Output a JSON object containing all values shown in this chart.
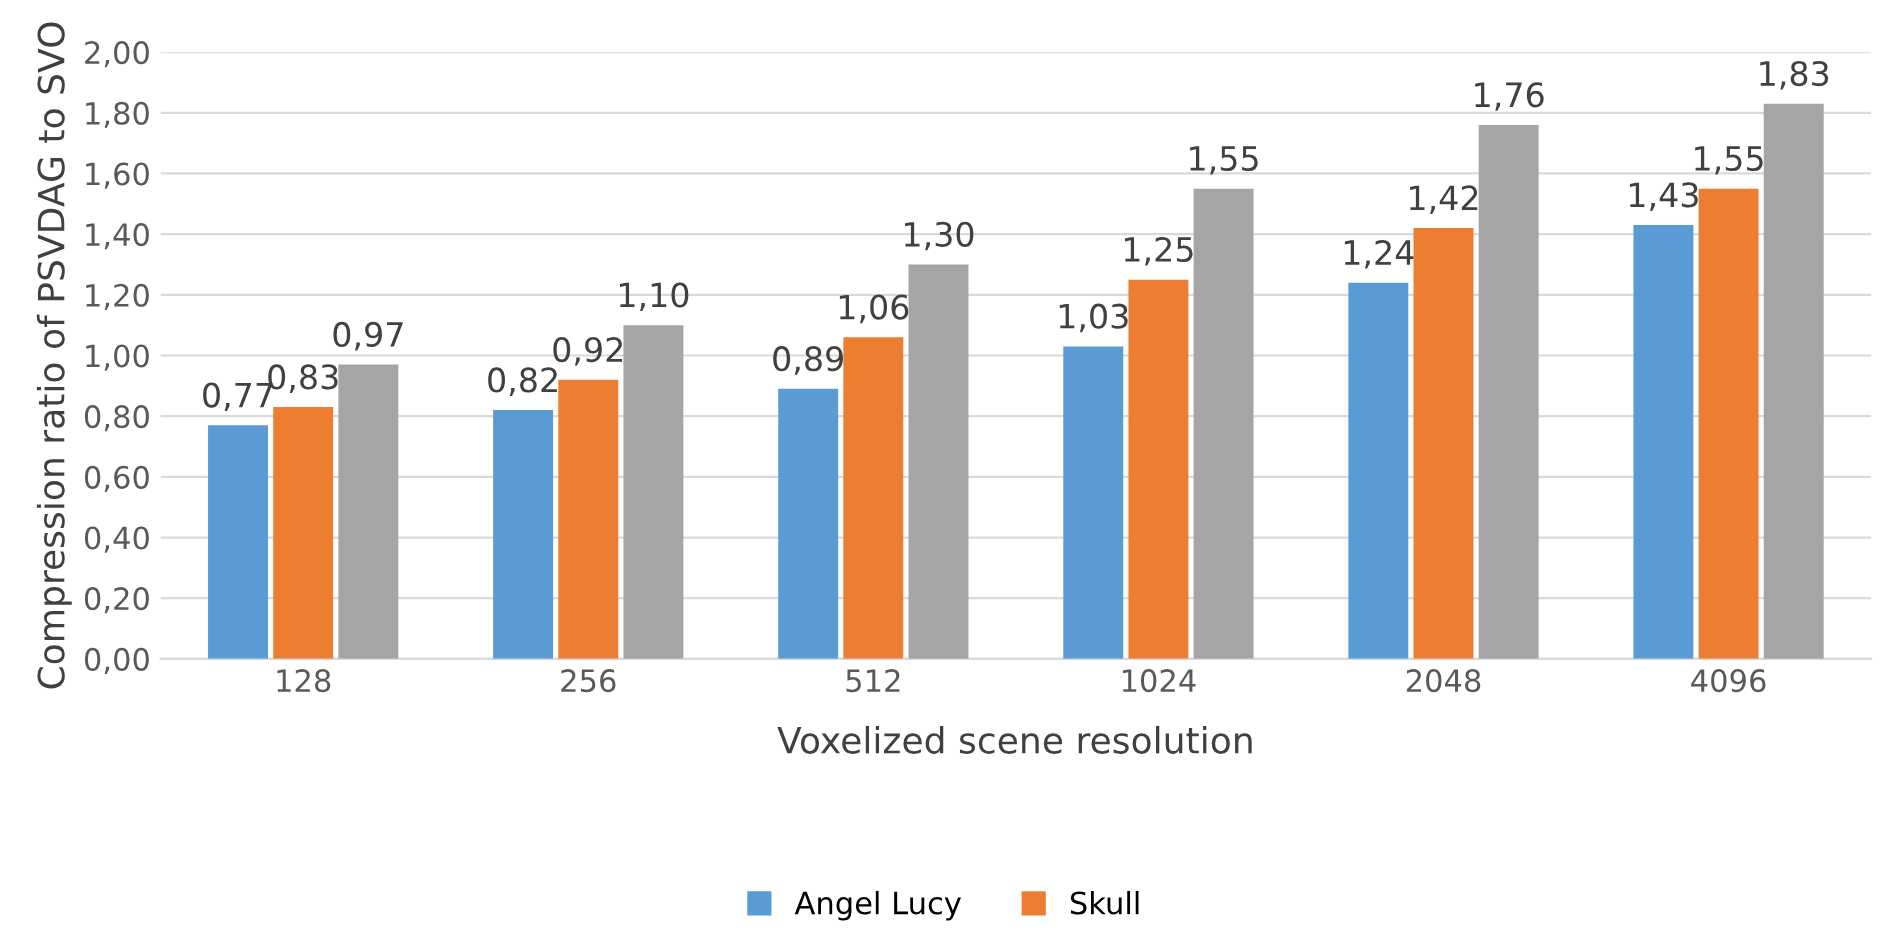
{
  "chart_data": {
    "type": "bar",
    "xlabel": "Voxelized scene resolution",
    "ylabel": "Compression ratio of PSVDAG to SVO",
    "categories": [
      "128",
      "256",
      "512",
      "1024",
      "2048",
      "4096"
    ],
    "series": [
      {
        "name": "Angel Lucy",
        "color": "#5b9bd5",
        "values": [
          0.77,
          0.82,
          0.89,
          1.03,
          1.24,
          1.43
        ],
        "value_labels": [
          "0,77",
          "0,82",
          "0,89",
          "1,03",
          "1,24",
          "1,43"
        ]
      },
      {
        "name": "Skull",
        "color": "#ed7d31",
        "values": [
          0.83,
          0.92,
          1.06,
          1.25,
          1.42,
          1.55
        ],
        "value_labels": [
          "0,83",
          "0,92",
          "1,06",
          "1,25",
          "1,42",
          "1,55"
        ]
      },
      {
        "color": "#a5a5a5",
        "values": [
          0.97,
          1.1,
          1.3,
          1.55,
          1.76,
          1.83
        ],
        "value_labels": [
          "0,97",
          "1,10",
          "1,30",
          "1,55",
          "1,76",
          "1,83"
        ]
      }
    ],
    "ylim": [
      0,
      2
    ],
    "yticks": [
      {
        "value": 0,
        "label": "0,00"
      },
      {
        "value": 0.2,
        "label": "0,20"
      },
      {
        "value": 0.4,
        "label": "0,40"
      },
      {
        "value": 0.6,
        "label": "0,60"
      },
      {
        "value": 0.8,
        "label": "0,80"
      },
      {
        "value": 1.0,
        "label": "1,00"
      },
      {
        "value": 1.2,
        "label": "1,20"
      },
      {
        "value": 1.4,
        "label": "1,40"
      },
      {
        "value": 1.6,
        "label": "1,60"
      },
      {
        "value": 1.8,
        "label": "1,80"
      },
      {
        "value": 2.0,
        "label": "2,00"
      }
    ],
    "grid": "y",
    "legend": "bottom"
  }
}
